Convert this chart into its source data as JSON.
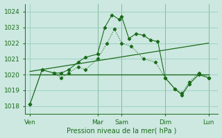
{
  "background_color": "#cce8e0",
  "plot_bg_color": "#cce8e0",
  "grid_color": "#99ccbb",
  "line_color": "#1a6b1a",
  "ylim": [
    1017.5,
    1024.5
  ],
  "yticks": [
    1018,
    1019,
    1020,
    1021,
    1022,
    1023,
    1024
  ],
  "xlabel": "Pression niveau de la mer( hPa )",
  "xtick_labels": [
    "Ven",
    "Mar",
    "Sam",
    "Dim",
    "Lun"
  ],
  "xtick_positions": [
    0,
    28,
    38,
    56,
    74
  ],
  "xlim": [
    -2,
    78
  ],
  "vline_positions": [
    28,
    38,
    56,
    74
  ],
  "line1_x": [
    0,
    5,
    10,
    13,
    16,
    20,
    23,
    28,
    32,
    35,
    38,
    42,
    47,
    52,
    56,
    60,
    63,
    66,
    70,
    74
  ],
  "line1_y": [
    1018.1,
    1020.3,
    1020.1,
    1019.8,
    1020.1,
    1020.5,
    1020.3,
    1021.0,
    1022.0,
    1022.9,
    1022.0,
    1021.8,
    1021.0,
    1020.8,
    1019.8,
    1019.1,
    1018.8,
    1019.5,
    1020.1,
    1019.8
  ],
  "line2_x": [
    0,
    5,
    10,
    13,
    16,
    20,
    23,
    28,
    31,
    34,
    37,
    38,
    41,
    44,
    47,
    50,
    53,
    56,
    60,
    63,
    66,
    70,
    74
  ],
  "line2_y": [
    1018.1,
    1020.3,
    1020.1,
    1020.1,
    1020.3,
    1020.8,
    1021.1,
    1021.3,
    1023.0,
    1023.8,
    1023.5,
    1023.7,
    1022.3,
    1022.6,
    1022.5,
    1022.2,
    1022.1,
    1019.8,
    1019.1,
    1018.7,
    1019.4,
    1020.0,
    1019.8
  ],
  "line3_x": [
    0,
    74
  ],
  "line3_y": [
    1020.0,
    1020.0
  ],
  "line4_x": [
    0,
    74
  ],
  "line4_y": [
    1020.2,
    1022.0
  ]
}
